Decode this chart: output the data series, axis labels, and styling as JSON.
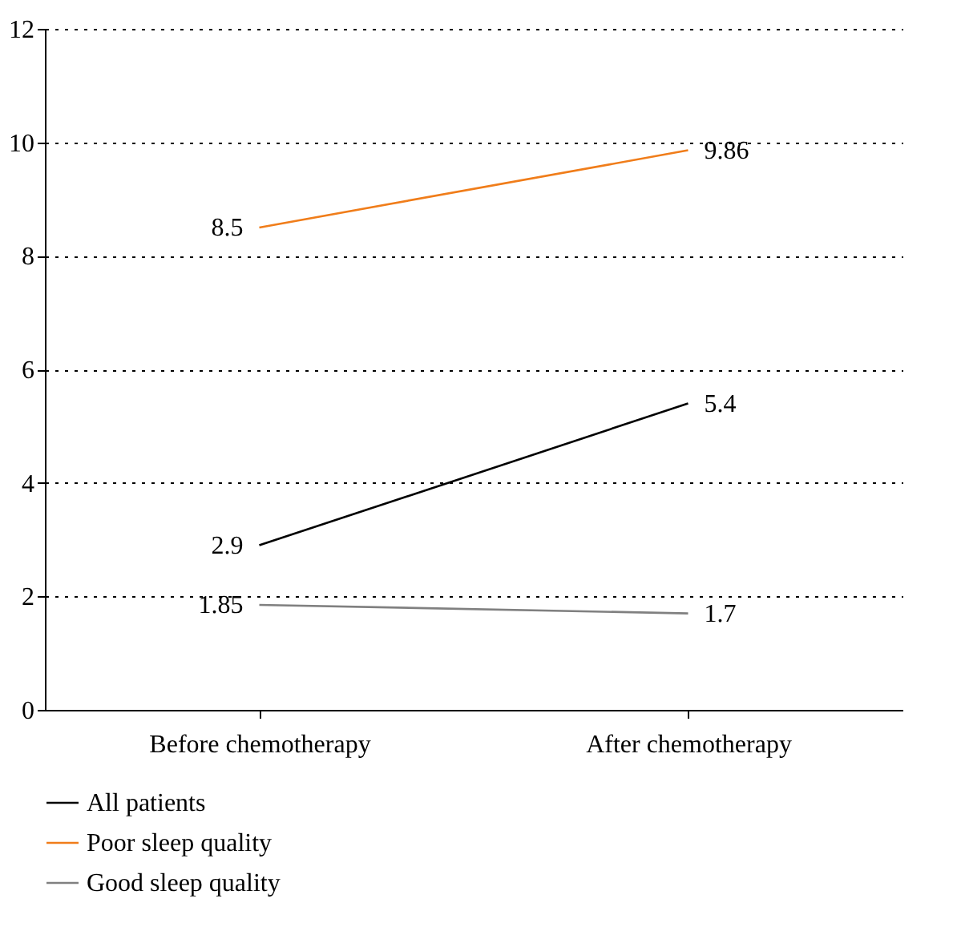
{
  "chart_data": {
    "type": "line",
    "categories": [
      "Before chemotherapy",
      "After chemotherapy"
    ],
    "series": [
      {
        "name": "All patients",
        "color": "#000000",
        "values": [
          2.9,
          5.4
        ]
      },
      {
        "name": "Poor sleep quality",
        "color": "#f07d1a",
        "values": [
          8.5,
          9.86
        ]
      },
      {
        "name": "Good sleep quality",
        "color": "#808080",
        "values": [
          1.85,
          1.7
        ]
      }
    ],
    "ylim": [
      0,
      12
    ],
    "yticks": [
      0,
      2,
      4,
      6,
      8,
      10,
      12
    ],
    "grid": "y",
    "legend": "bottom",
    "data_labels": true,
    "marker": "none",
    "line_style": "solid"
  }
}
